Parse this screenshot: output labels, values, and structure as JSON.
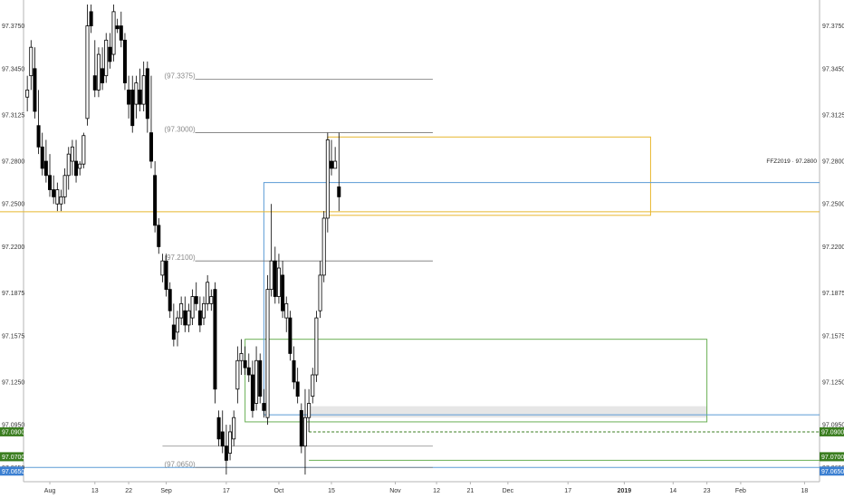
{
  "chart_data": {
    "type": "candlestick",
    "symbol_label": "FFZ2019 · 97.2800",
    "y_ticks": [
      "97.3750",
      "97.3450",
      "97.3125",
      "97.2800",
      "97.2500",
      "97.2200",
      "97.1875",
      "97.1575",
      "97.1250",
      "97.0950",
      "97.0650"
    ],
    "ylim": [
      97.055,
      97.39
    ],
    "x_ticks": [
      {
        "label": "Aug",
        "day": 0
      },
      {
        "label": "13",
        "day": 12
      },
      {
        "label": "22",
        "day": 21
      },
      {
        "label": "Sep",
        "day": 31
      },
      {
        "label": "17",
        "day": 47
      },
      {
        "label": "Oct",
        "day": 61
      },
      {
        "label": "15",
        "day": 75
      },
      {
        "label": "Nov",
        "day": 92
      },
      {
        "label": "12",
        "day": 103
      },
      {
        "label": "21",
        "day": 112
      },
      {
        "label": "Dec",
        "day": 122
      },
      {
        "label": "17",
        "day": 138
      },
      {
        "label": "2019",
        "day": 153
      },
      {
        "label": "14",
        "day": 166
      },
      {
        "label": "23",
        "day": 175
      },
      {
        "label": "Feb",
        "day": 184
      },
      {
        "label": "18",
        "day": 201
      }
    ],
    "bold_ticks": [
      "2019"
    ],
    "x_range": [
      -7,
      205
    ],
    "candles": [
      [
        -6,
        97.325,
        97.34,
        97.315,
        97.33
      ],
      [
        -5,
        97.34,
        97.365,
        97.33,
        97.36
      ],
      [
        -4,
        97.345,
        97.36,
        97.31,
        97.315
      ],
      [
        -3,
        97.305,
        97.33,
        97.285,
        97.29
      ],
      [
        -2,
        97.29,
        97.3,
        97.27,
        97.275
      ],
      [
        -1,
        97.28,
        97.295,
        97.265,
        97.27
      ],
      [
        0,
        97.27,
        97.285,
        97.255,
        97.26
      ],
      [
        1,
        97.26,
        97.27,
        97.25,
        97.255
      ],
      [
        2,
        97.25,
        97.265,
        97.245,
        97.26
      ],
      [
        3,
        97.25,
        97.26,
        97.245,
        97.255
      ],
      [
        4,
        97.255,
        97.275,
        97.25,
        97.27
      ],
      [
        5,
        97.27,
        97.29,
        97.26,
        97.285
      ],
      [
        6,
        97.28,
        97.295,
        97.27,
        97.29
      ],
      [
        7,
        97.28,
        97.295,
        97.265,
        97.27
      ],
      [
        8,
        97.275,
        97.28,
        97.27,
        97.278
      ],
      [
        9,
        97.278,
        97.3,
        97.275,
        97.298
      ],
      [
        10,
        97.31,
        97.39,
        97.305,
        97.375
      ],
      [
        11,
        97.385,
        97.39,
        97.37,
        97.375
      ],
      [
        12,
        97.34,
        97.365,
        97.325,
        97.33
      ],
      [
        13,
        97.33,
        97.36,
        97.325,
        97.355
      ],
      [
        14,
        97.345,
        97.36,
        97.33,
        97.335
      ],
      [
        15,
        97.34,
        97.37,
        97.335,
        97.365
      ],
      [
        16,
        97.36,
        97.37,
        97.345,
        97.35
      ],
      [
        17,
        97.355,
        97.39,
        97.35,
        97.385
      ],
      [
        18,
        97.375,
        97.38,
        97.37,
        97.373
      ],
      [
        19,
        97.375,
        97.385,
        97.36,
        97.365
      ],
      [
        20,
        97.365,
        97.37,
        97.33,
        97.335
      ],
      [
        21,
        97.33,
        97.34,
        97.31,
        97.32
      ],
      [
        22,
        97.33,
        97.34,
        97.3,
        97.305
      ],
      [
        23,
        97.32,
        97.34,
        97.31,
        97.335
      ],
      [
        24,
        97.33,
        97.345,
        97.315,
        97.32
      ],
      [
        25,
        97.32,
        97.35,
        97.315,
        97.34
      ],
      [
        26,
        97.345,
        97.35,
        97.3,
        97.31
      ],
      [
        27,
        97.3,
        97.34,
        97.275,
        97.28
      ],
      [
        28,
        97.27,
        97.28,
        97.23,
        97.235
      ],
      [
        29,
        97.235,
        97.24,
        97.215,
        97.22
      ],
      [
        30,
        97.2,
        97.215,
        97.195,
        97.21
      ],
      [
        31,
        97.21,
        97.215,
        97.185,
        97.19
      ],
      [
        32,
        97.19,
        97.195,
        97.17,
        97.175
      ],
      [
        33,
        97.165,
        97.18,
        97.15,
        97.155
      ],
      [
        34,
        97.16,
        97.175,
        97.15,
        97.17
      ],
      [
        35,
        97.17,
        97.185,
        97.165,
        97.18
      ],
      [
        36,
        97.175,
        97.185,
        97.16,
        97.165
      ],
      [
        37,
        97.165,
        97.18,
        97.16,
        97.175
      ],
      [
        38,
        97.17,
        97.19,
        97.165,
        97.185
      ],
      [
        39,
        97.185,
        97.195,
        97.175,
        97.18
      ],
      [
        40,
        97.175,
        97.185,
        97.16,
        97.165
      ],
      [
        41,
        97.17,
        97.185,
        97.165,
        97.18
      ],
      [
        42,
        97.18,
        97.2,
        97.175,
        97.195
      ],
      [
        43,
        97.18,
        97.19,
        97.175,
        97.185
      ],
      [
        44,
        97.19,
        97.195,
        97.11,
        97.12
      ],
      [
        45,
        97.1,
        97.105,
        97.08,
        97.085
      ],
      [
        46,
        97.09,
        97.105,
        97.075,
        97.08
      ],
      [
        47,
        97.08,
        97.095,
        97.06,
        97.07
      ],
      [
        48,
        97.075,
        97.095,
        97.07,
        97.09
      ],
      [
        49,
        97.085,
        97.105,
        97.08,
        97.1
      ],
      [
        50,
        97.12,
        97.15,
        97.11,
        97.14
      ],
      [
        51,
        97.14,
        97.155,
        97.13,
        97.145
      ],
      [
        52,
        97.14,
        97.15,
        97.13,
        97.135
      ],
      [
        53,
        97.135,
        97.145,
        97.125,
        97.13
      ],
      [
        54,
        97.13,
        97.14,
        97.1,
        97.105
      ],
      [
        55,
        97.11,
        97.15,
        97.105,
        97.14
      ],
      [
        56,
        97.14,
        97.145,
        97.11,
        97.115
      ],
      [
        57,
        97.11,
        97.12,
        97.1,
        97.105
      ],
      [
        58,
        97.1,
        97.2,
        97.095,
        97.19
      ],
      [
        59,
        97.19,
        97.25,
        97.185,
        97.21
      ],
      [
        60,
        97.21,
        97.22,
        97.18,
        97.185
      ],
      [
        61,
        97.185,
        97.215,
        97.18,
        97.205
      ],
      [
        62,
        97.2,
        97.21,
        97.17,
        97.175
      ],
      [
        63,
        97.17,
        97.185,
        97.16,
        97.18
      ],
      [
        64,
        97.17,
        97.175,
        97.14,
        97.145
      ],
      [
        65,
        97.14,
        97.15,
        97.12,
        97.125
      ],
      [
        66,
        97.125,
        97.135,
        97.11,
        97.115
      ],
      [
        67,
        97.105,
        97.11,
        97.075,
        97.08
      ],
      [
        68,
        97.08,
        97.12,
        97.06,
        97.1
      ],
      [
        69,
        97.1,
        97.12,
        97.09,
        97.11
      ],
      [
        70,
        97.115,
        97.135,
        97.11,
        97.13
      ],
      [
        71,
        97.13,
        97.175,
        97.125,
        97.17
      ],
      [
        72,
        97.175,
        97.21,
        97.17,
        97.2
      ],
      [
        73,
        97.2,
        97.245,
        97.195,
        97.24
      ],
      [
        74,
        97.24,
        97.3,
        97.23,
        97.295
      ],
      [
        75,
        97.28,
        97.295,
        97.27,
        97.275
      ],
      [
        76,
        97.275,
        97.29,
        97.275,
        97.28
      ],
      [
        77,
        97.262,
        97.3,
        97.245,
        97.255
      ]
    ],
    "level_labels": [
      {
        "text": "(97.3375)",
        "value": 97.3375
      },
      {
        "text": "(97.3000)",
        "value": 97.3
      },
      {
        "text": "(97.2100)",
        "value": 97.21
      },
      {
        "text": "(97.0650)",
        "value": 97.065
      }
    ],
    "price_tags": [
      {
        "text": "97.0900",
        "value": 97.09,
        "color": "#3a7d1f"
      },
      {
        "text": "97.0700",
        "value": 97.07,
        "color": "#3a7d1f"
      },
      {
        "text": "97.0650",
        "value": 97.065,
        "color": "#3b7fd1"
      }
    ],
    "overlay_colors": {
      "yellow": "#e8b72e",
      "blue": "#5b9bd5",
      "green": "#6aaf54",
      "shade": "#e6e6e6",
      "level": "#777777"
    },
    "grid": false
  }
}
